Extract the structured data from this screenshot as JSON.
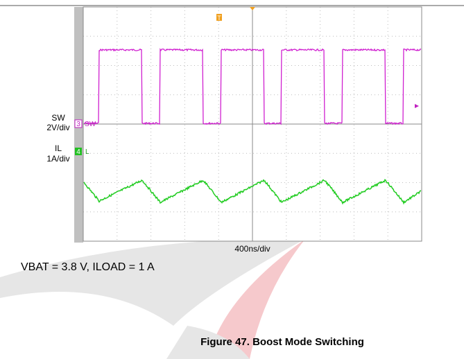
{
  "scope": {
    "channels": [
      {
        "label": "SW",
        "scale": "2V/div",
        "marker": "3",
        "tag": "SW"
      },
      {
        "label": "IL",
        "scale": "1A/div",
        "marker": "4",
        "tag": "L"
      }
    ],
    "trigger": "T",
    "timebase": "400ns/div"
  },
  "caption": {
    "conditions": "VBAT = 3.8 V, ILOAD = 1 A",
    "title": "Figure 47. Boost Mode Switching"
  }
}
